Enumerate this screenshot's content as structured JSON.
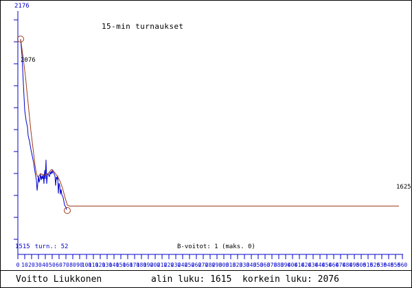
{
  "chart_data": {
    "type": "line",
    "title": "15-min turnaukset",
    "x_axis": {
      "min": 0,
      "max": 560,
      "step": 10
    },
    "y_axis": {
      "top_label": "2176",
      "bottom_label": "1515",
      "tick_count": 11
    },
    "series": [
      {
        "name": "tournament-rating",
        "color": "#0000cc",
        "points": [
          [
            4,
            2076
          ],
          [
            6,
            2032
          ],
          [
            8,
            1957
          ],
          [
            10,
            1883
          ],
          [
            12,
            1856
          ],
          [
            14,
            1838
          ],
          [
            15,
            1815
          ],
          [
            17,
            1800
          ],
          [
            19,
            1778
          ],
          [
            21,
            1760
          ],
          [
            23,
            1742
          ],
          [
            25,
            1717
          ],
          [
            27,
            1695
          ],
          [
            28,
            1667
          ],
          [
            29,
            1685
          ],
          [
            30,
            1707
          ],
          [
            31,
            1689
          ],
          [
            32,
            1698
          ],
          [
            33,
            1711
          ],
          [
            34,
            1695
          ],
          [
            35,
            1707
          ],
          [
            36,
            1698
          ],
          [
            37,
            1711
          ],
          [
            38,
            1685
          ],
          [
            39,
            1722
          ],
          [
            40,
            1698
          ],
          [
            41,
            1750
          ],
          [
            42,
            1685
          ],
          [
            43,
            1707
          ],
          [
            44,
            1713
          ],
          [
            45,
            1709
          ],
          [
            46,
            1704
          ],
          [
            47,
            1717
          ],
          [
            48,
            1711
          ],
          [
            49,
            1720
          ],
          [
            50,
            1713
          ],
          [
            51,
            1722
          ],
          [
            52,
            1717
          ],
          [
            53,
            1711
          ],
          [
            54,
            1707
          ],
          [
            55,
            1680
          ],
          [
            56,
            1704
          ],
          [
            57,
            1698
          ],
          [
            58,
            1707
          ],
          [
            59,
            1659
          ],
          [
            60,
            1687
          ],
          [
            61,
            1680
          ],
          [
            62,
            1657
          ],
          [
            63,
            1670
          ],
          [
            64,
            1656
          ],
          [
            66,
            1648
          ],
          [
            68,
            1628
          ],
          [
            70,
            1622
          ],
          [
            71,
            1615
          ]
        ]
      },
      {
        "name": "rating-trend",
        "color": "#9c3a16",
        "points": [
          [
            4,
            2076
          ],
          [
            8,
            2022
          ],
          [
            11,
            1976
          ],
          [
            15,
            1902
          ],
          [
            19,
            1828
          ],
          [
            22,
            1782
          ],
          [
            25,
            1735
          ],
          [
            27,
            1713
          ],
          [
            29,
            1704
          ],
          [
            31,
            1707
          ],
          [
            33,
            1713
          ],
          [
            37,
            1709
          ],
          [
            41,
            1709
          ],
          [
            45,
            1715
          ],
          [
            49,
            1724
          ],
          [
            53,
            1717
          ],
          [
            57,
            1707
          ],
          [
            61,
            1694
          ],
          [
            65,
            1674
          ],
          [
            69,
            1646
          ],
          [
            72,
            1628
          ],
          [
            75,
            1625
          ],
          [
            555,
            1625
          ]
        ]
      }
    ],
    "markers": [
      {
        "x": 4,
        "rating": 2076
      },
      {
        "x": 72,
        "rating": 1613
      }
    ],
    "annotations": {
      "start_rating": "2076",
      "current_rating": "1625",
      "tournaments": "turn.: 52",
      "b_wins": "B-voitot: 1 (maks. 0)"
    },
    "layout": {
      "x0": 25,
      "x_scale": 1,
      "y0": 56,
      "r0": 2076,
      "y_scale": 0.54,
      "axis_top": 15,
      "axis_bottom": 370,
      "axis_right": 586,
      "ytick": {
        "start": 28,
        "step": 32,
        "count": 11,
        "len": 6
      },
      "xtick": {
        "len": 7,
        "label_y": 388,
        "font_px": 8
      },
      "axis_color": "#0000cc"
    }
  },
  "footer": {
    "player_name": "Voitto Liukkonen",
    "stats": "alin luku: 1615  korkein luku: 2076"
  }
}
